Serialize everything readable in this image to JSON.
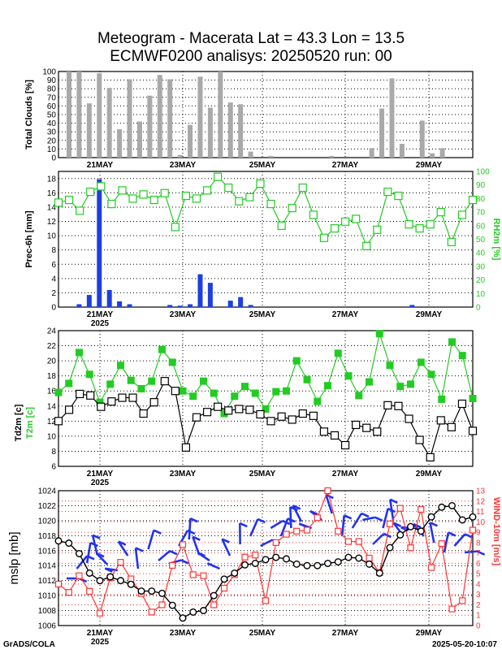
{
  "header": {
    "title_line1": "Meteogram - Macerata Lat = 43.3 Lon = 13.5",
    "title_line2": "ECMWF0200 analisys: 20250520 run: 00"
  },
  "footer": {
    "left": "GrADS/COLA",
    "right": "2025-05-20-10:07"
  },
  "colors": {
    "cloud_bar": "#a9a9a9",
    "precip_bar": "#1e3fe0",
    "rh_line": "#22cc22",
    "t2m": "#22cc22",
    "td2m": "#000000",
    "mslp": "#000000",
    "wind": "#ff3333",
    "barb": "#2233ee",
    "grid": "#000000"
  },
  "chart_data": [
    {
      "id": "clouds",
      "type": "bar",
      "title": "",
      "ylabel": "Total Clouds [%]",
      "ylim": [
        0,
        100
      ],
      "yticks": [
        "0",
        "10",
        "20",
        "30",
        "40",
        "50",
        "60",
        "70",
        "80",
        "90",
        "100"
      ],
      "grid": "dotted",
      "x_tick_labels": [
        "21MAY",
        "23MAY",
        "25MAY",
        "27MAY",
        "29MAY"
      ],
      "values": [
        100,
        100,
        63,
        98,
        81,
        33,
        91,
        42,
        72,
        96,
        91,
        3,
        38,
        94,
        58,
        100,
        64,
        62,
        7,
        0,
        2,
        0,
        0,
        0,
        0,
        0,
        2,
        0,
        0,
        0,
        11,
        57,
        92,
        16,
        0,
        43,
        5,
        11,
        0
      ]
    },
    {
      "id": "precip",
      "type": "bar+line",
      "ylabel": "Prec-6h [mm]",
      "y2label": "RH2m [%]",
      "ylim": [
        0,
        19
      ],
      "y2lim": [
        0,
        100
      ],
      "yticks": [
        "0",
        "2",
        "4",
        "6",
        "8",
        "10",
        "12",
        "14",
        "16",
        "18"
      ],
      "y2ticks": [
        "0",
        "10",
        "20",
        "30",
        "40",
        "50",
        "60",
        "70",
        "80",
        "90",
        "100"
      ],
      "year_label": "2025",
      "x_tick_labels": [
        "21MAY",
        "23MAY",
        "25MAY",
        "27MAY",
        "29MAY"
      ],
      "series": [
        {
          "values": [
            0,
            0.4,
            1.7,
            17.9,
            2.4,
            0.8,
            0.4,
            0,
            0,
            0,
            0.3,
            0.2,
            0.4,
            4.6,
            3.4,
            0,
            0.9,
            1.4,
            0.3,
            0,
            0,
            0,
            0,
            0,
            0,
            0,
            0,
            0,
            0,
            0,
            0,
            0,
            0,
            0,
            0.3,
            0,
            0,
            0,
            0
          ]
        },
        {
          "values": [
            77,
            79,
            71,
            85,
            89,
            76,
            86,
            80,
            83,
            79,
            84,
            59,
            82,
            80,
            86,
            96,
            88,
            78,
            81,
            91,
            76,
            60,
            73,
            88,
            68,
            51,
            58,
            63,
            65,
            45,
            57,
            85,
            82,
            61,
            58,
            61,
            70,
            48,
            68,
            79
          ]
        }
      ]
    },
    {
      "id": "temp",
      "type": "line",
      "ylabel": "T2m [c]",
      "y2label": "Td2m [c]",
      "ylim": [
        6,
        24
      ],
      "yticks": [
        "6",
        "8",
        "10",
        "12",
        "14",
        "16",
        "18",
        "20",
        "22",
        "24"
      ],
      "year_label": "2025",
      "x_tick_labels": [
        "21MAY",
        "23MAY",
        "25MAY",
        "27MAY",
        "29MAY"
      ],
      "series": [
        {
          "values": [
            15.8,
            17.0,
            21.1,
            18.2,
            14.5,
            16.9,
            19.4,
            17.4,
            16.3,
            17.3,
            21.5,
            19.8,
            16.0,
            15.3,
            17.3,
            15.7,
            13.0,
            15.3,
            16.6,
            15.7,
            13.6,
            15.9,
            16.0,
            20.0,
            17.5,
            14.6,
            16.7,
            21.0,
            18.0,
            15.4,
            17.2,
            23.6,
            19.4,
            16.6,
            16.9,
            19.8,
            18.2,
            14.9,
            22.5,
            20.7,
            15.0
          ]
        },
        {
          "values": [
            12.0,
            13.5,
            15.6,
            15.4,
            13.9,
            14.6,
            15.1,
            15.1,
            13.0,
            14.5,
            17.3,
            16.0,
            8.5,
            12.5,
            13.2,
            13.9,
            13.4,
            13.6,
            13.5,
            12.9,
            12.0,
            12.6,
            12.2,
            13.0,
            12.7,
            10.6,
            10.1,
            8.8,
            11.5,
            11.1,
            10.6,
            14.1,
            14.0,
            12.3,
            9.5,
            7.2,
            12.1,
            11.2,
            14.3,
            10.7
          ]
        }
      ]
    },
    {
      "id": "mslp",
      "type": "line",
      "ylabel": "mslp [mb]",
      "y2label": "WIND-10m [m/s]",
      "ylim": [
        1006,
        1024
      ],
      "y2lim": [
        0,
        13
      ],
      "yticks": [
        "1006",
        "1008",
        "1010",
        "1012",
        "1014",
        "1016",
        "1018",
        "1020",
        "1022",
        "1024"
      ],
      "y2ticks": [
        "0",
        "1",
        "2",
        "3",
        "4",
        "5",
        "6",
        "7",
        "8",
        "9",
        "10",
        "11",
        "12",
        "13"
      ],
      "year_label": "2025",
      "x_tick_labels": [
        "21MAY",
        "23MAY",
        "25MAY",
        "27MAY",
        "29MAY"
      ],
      "series": [
        {
          "values": [
            1017.3,
            1017.0,
            1015.6,
            1013.0,
            1012.0,
            1012.5,
            1012.0,
            1011.5,
            1010.6,
            1010.6,
            1010.3,
            1008.7,
            1007.0,
            1007.8,
            1008.0,
            1010.0,
            1012.2,
            1013.0,
            1014.1,
            1014.3,
            1014.8,
            1015.1,
            1014.9,
            1014.2,
            1014.0,
            1014.0,
            1014.3,
            1014.5,
            1015.1,
            1015.0,
            1014.2,
            1013.0,
            1016.4,
            1018.1,
            1019.2,
            1018.6,
            1020.5,
            1021.8,
            1022.0,
            1020.1,
            1020.5
          ]
        },
        {
          "values": [
            4.0,
            3.2,
            4.8,
            3.3,
            1.2,
            4.6,
            6.1,
            4.5,
            3.1,
            1.3,
            2.0,
            5.8,
            7.8,
            4.9,
            4.8,
            2.0,
            3.6,
            4.9,
            6.6,
            6.8,
            2.4,
            8.0,
            8.8,
            9.1,
            9.2,
            10.4,
            13.0,
            9.1,
            8.1,
            8.1,
            6.5,
            5.1,
            9.8,
            11.3,
            7.5,
            11.2,
            5.6,
            7.9,
            1.6,
            2.4,
            9.2
          ]
        }
      ]
    }
  ]
}
